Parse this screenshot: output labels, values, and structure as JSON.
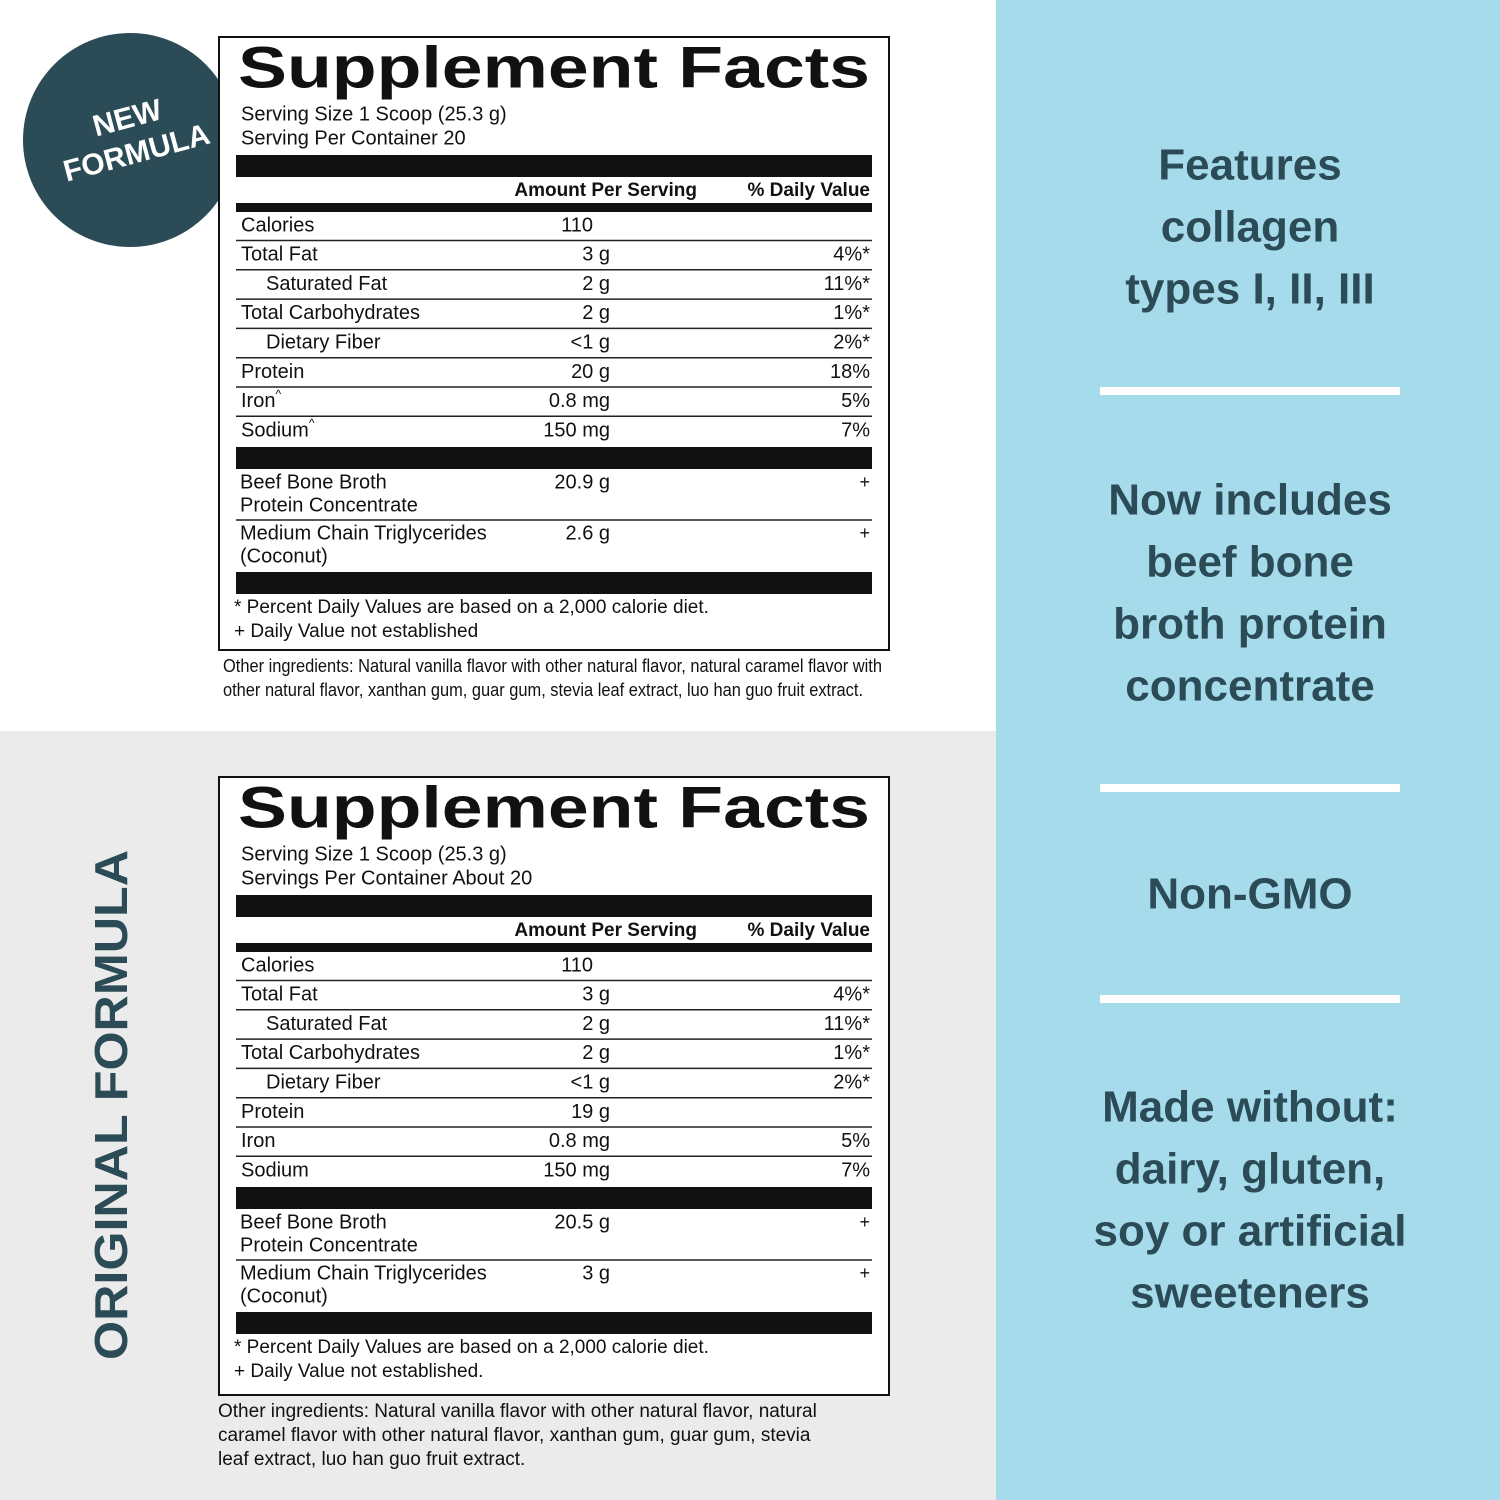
{
  "badge": [
    "NEW",
    "FORMULA"
  ],
  "side_label": "ORIGINAL FORMULA",
  "panels": [
    {
      "title": "Supplement Facts",
      "serving_size": "Serving Size 1 Scoop (25.3 g)",
      "servings": "Serving Per Container 20",
      "header": [
        "Amount Per Serving",
        "% Daily Value"
      ],
      "rows": [
        {
          "name": "Calories",
          "amount": "110",
          "dv": null,
          "sub": false,
          "note": null
        },
        {
          "name": "Total Fat",
          "amount": "3 g",
          "dv": "4%*",
          "sub": false,
          "note": null
        },
        {
          "name": "Saturated Fat",
          "amount": "2 g",
          "dv": "11%*",
          "sub": true,
          "note": null
        },
        {
          "name": "Total Carbohydrates",
          "amount": "2 g",
          "dv": "1%*",
          "sub": false,
          "note": null
        },
        {
          "name": "Dietary Fiber",
          "amount": "<1 g",
          "dv": "2%*",
          "sub": true,
          "note": null
        },
        {
          "name": "Protein",
          "amount": "20 g",
          "dv": "18%",
          "sub": false,
          "note": null
        },
        {
          "name": "Iron",
          "amount": "0.8 mg",
          "dv": "5%",
          "sub": false,
          "note": "^"
        },
        {
          "name": "Sodium",
          "amount": "150 mg",
          "dv": "7%",
          "sub": false,
          "note": "^"
        }
      ],
      "ingredients": [
        {
          "name": [
            "Beef Bone Broth",
            "Protein Concentrate"
          ],
          "amount": "20.9 g",
          "dv": "+"
        },
        {
          "name": [
            "Medium Chain Triglycerides",
            "(Coconut)"
          ],
          "amount": "2.6 g",
          "dv": "+"
        }
      ],
      "footnotes": [
        "* Percent Daily Values are based on a 2,000 calorie diet.",
        "+ Daily Value not established"
      ],
      "other_ingredients": [
        "Other ingredients: Natural vanilla flavor with other natural flavor, natural caramel flavor with",
        "other natural flavor, xanthan gum, guar gum, stevia leaf extract, luo han guo fruit extract."
      ]
    },
    {
      "title": "Supplement Facts",
      "serving_size": "Serving Size 1 Scoop (25.3 g)",
      "servings": "Servings Per Container About 20",
      "header": [
        "Amount Per Serving",
        "% Daily Value"
      ],
      "rows": [
        {
          "name": "Calories",
          "amount": "110",
          "dv": null,
          "sub": false,
          "note": null
        },
        {
          "name": "Total Fat",
          "amount": "3 g",
          "dv": "4%*",
          "sub": false,
          "note": null
        },
        {
          "name": "Saturated Fat",
          "amount": "2 g",
          "dv": "11%*",
          "sub": true,
          "note": null
        },
        {
          "name": "Total Carbohydrates",
          "amount": "2 g",
          "dv": "1%*",
          "sub": false,
          "note": null
        },
        {
          "name": "Dietary Fiber",
          "amount": "<1 g",
          "dv": "2%*",
          "sub": true,
          "note": null
        },
        {
          "name": "Protein",
          "amount": "19 g",
          "dv": null,
          "sub": false,
          "note": null
        },
        {
          "name": "Iron",
          "amount": "0.8 mg",
          "dv": "5%",
          "sub": false,
          "note": null
        },
        {
          "name": "Sodium",
          "amount": "150 mg",
          "dv": "7%",
          "sub": false,
          "note": null
        }
      ],
      "ingredients": [
        {
          "name": [
            "Beef Bone Broth",
            "Protein Concentrate"
          ],
          "amount": "20.5 g",
          "dv": "+"
        },
        {
          "name": [
            "Medium Chain Triglycerides",
            "(Coconut)"
          ],
          "amount": "3 g",
          "dv": "+"
        }
      ],
      "footnotes": [
        "* Percent Daily Values are based on a 2,000 calorie diet.",
        "+ Daily Value not established."
      ],
      "other_ingredients": [
        "Other ingredients: Natural vanilla flavor with other natural flavor, natural",
        "caramel flavor with other natural flavor, xanthan gum, guar gum, stevia",
        "leaf extract, luo han guo fruit extract."
      ]
    }
  ],
  "features": [
    [
      "Features",
      "collagen",
      "types I, II, III"
    ],
    [
      "Now includes",
      "beef bone",
      "broth protein",
      "concentrate"
    ],
    [
      "Non-GMO"
    ],
    [
      "Made without:",
      "dairy, gluten,",
      "soy or artificial",
      "sweeteners"
    ]
  ]
}
